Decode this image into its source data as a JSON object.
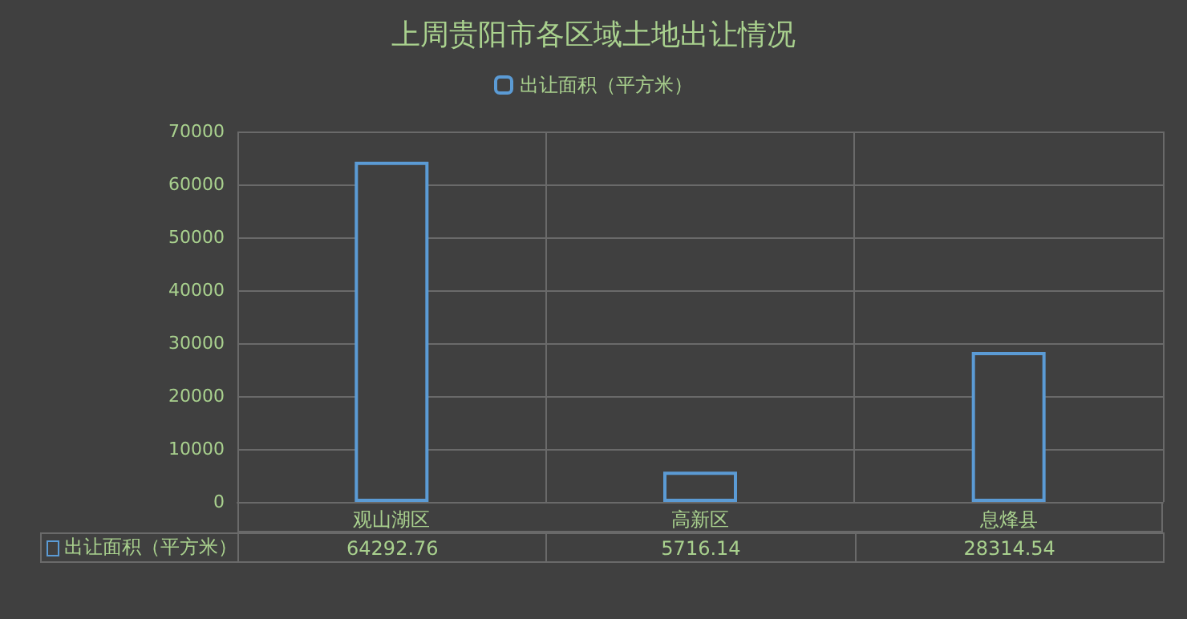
{
  "chart_data": {
    "type": "bar",
    "title": "上周贵阳市各区域土地出让情况",
    "categories": [
      "观山湖区",
      "高新区",
      "息烽县"
    ],
    "series": [
      {
        "name": "出让面积（平方米）",
        "color": "#5b9bd5",
        "values": [
          64292.76,
          5716.14,
          28314.54
        ]
      }
    ],
    "ylim": [
      0,
      70000
    ],
    "yticks": [
      0,
      10000,
      20000,
      30000,
      40000,
      50000,
      60000,
      70000
    ],
    "grid": true,
    "legend": "top",
    "data_labels": true
  }
}
